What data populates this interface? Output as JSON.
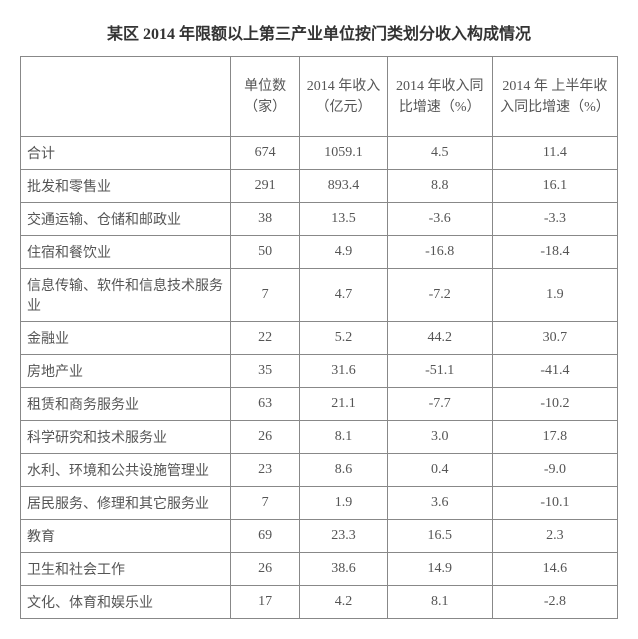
{
  "title": "某区 2014 年限额以上第三产业单位按门类划分收入构成情况",
  "columns": {
    "c0": "",
    "c1": "单位数（家）",
    "c2": "2014 年收入（亿元）",
    "c3": "2014 年收入同比增速（%）",
    "c4": "2014 年 上半年收入同比增速（%）"
  },
  "rows": [
    {
      "name": "合计",
      "units": "674",
      "revenue": "1059.1",
      "growth": "4.5",
      "h1growth": "11.4"
    },
    {
      "name": "批发和零售业",
      "units": "291",
      "revenue": "893.4",
      "growth": "8.8",
      "h1growth": "16.1"
    },
    {
      "name": "交通运输、仓储和邮政业",
      "units": "38",
      "revenue": "13.5",
      "growth": "-3.6",
      "h1growth": "-3.3"
    },
    {
      "name": "住宿和餐饮业",
      "units": "50",
      "revenue": "4.9",
      "growth": "-16.8",
      "h1growth": "-18.4"
    },
    {
      "name": "信息传输、软件和信息技术服务业",
      "units": "7",
      "revenue": "4.7",
      "growth": "-7.2",
      "h1growth": "1.9"
    },
    {
      "name": "金融业",
      "units": "22",
      "revenue": "5.2",
      "growth": "44.2",
      "h1growth": "30.7"
    },
    {
      "name": "房地产业",
      "units": "35",
      "revenue": "31.6",
      "growth": "-51.1",
      "h1growth": "-41.4"
    },
    {
      "name": "租赁和商务服务业",
      "units": "63",
      "revenue": "21.1",
      "growth": "-7.7",
      "h1growth": "-10.2"
    },
    {
      "name": "科学研究和技术服务业",
      "units": "26",
      "revenue": "8.1",
      "growth": "3.0",
      "h1growth": "17.8"
    },
    {
      "name": "水利、环境和公共设施管理业",
      "units": "23",
      "revenue": "8.6",
      "growth": "0.4",
      "h1growth": "-9.0"
    },
    {
      "name": "居民服务、修理和其它服务业",
      "units": "7",
      "revenue": "1.9",
      "growth": "3.6",
      "h1growth": "-10.1"
    },
    {
      "name": "教育",
      "units": "69",
      "revenue": "23.3",
      "growth": "16.5",
      "h1growth": "2.3"
    },
    {
      "name": "卫生和社会工作",
      "units": "26",
      "revenue": "38.6",
      "growth": "14.9",
      "h1growth": "14.6"
    },
    {
      "name": "文化、体育和娱乐业",
      "units": "17",
      "revenue": "4.2",
      "growth": "8.1",
      "h1growth": "-2.8"
    }
  ]
}
